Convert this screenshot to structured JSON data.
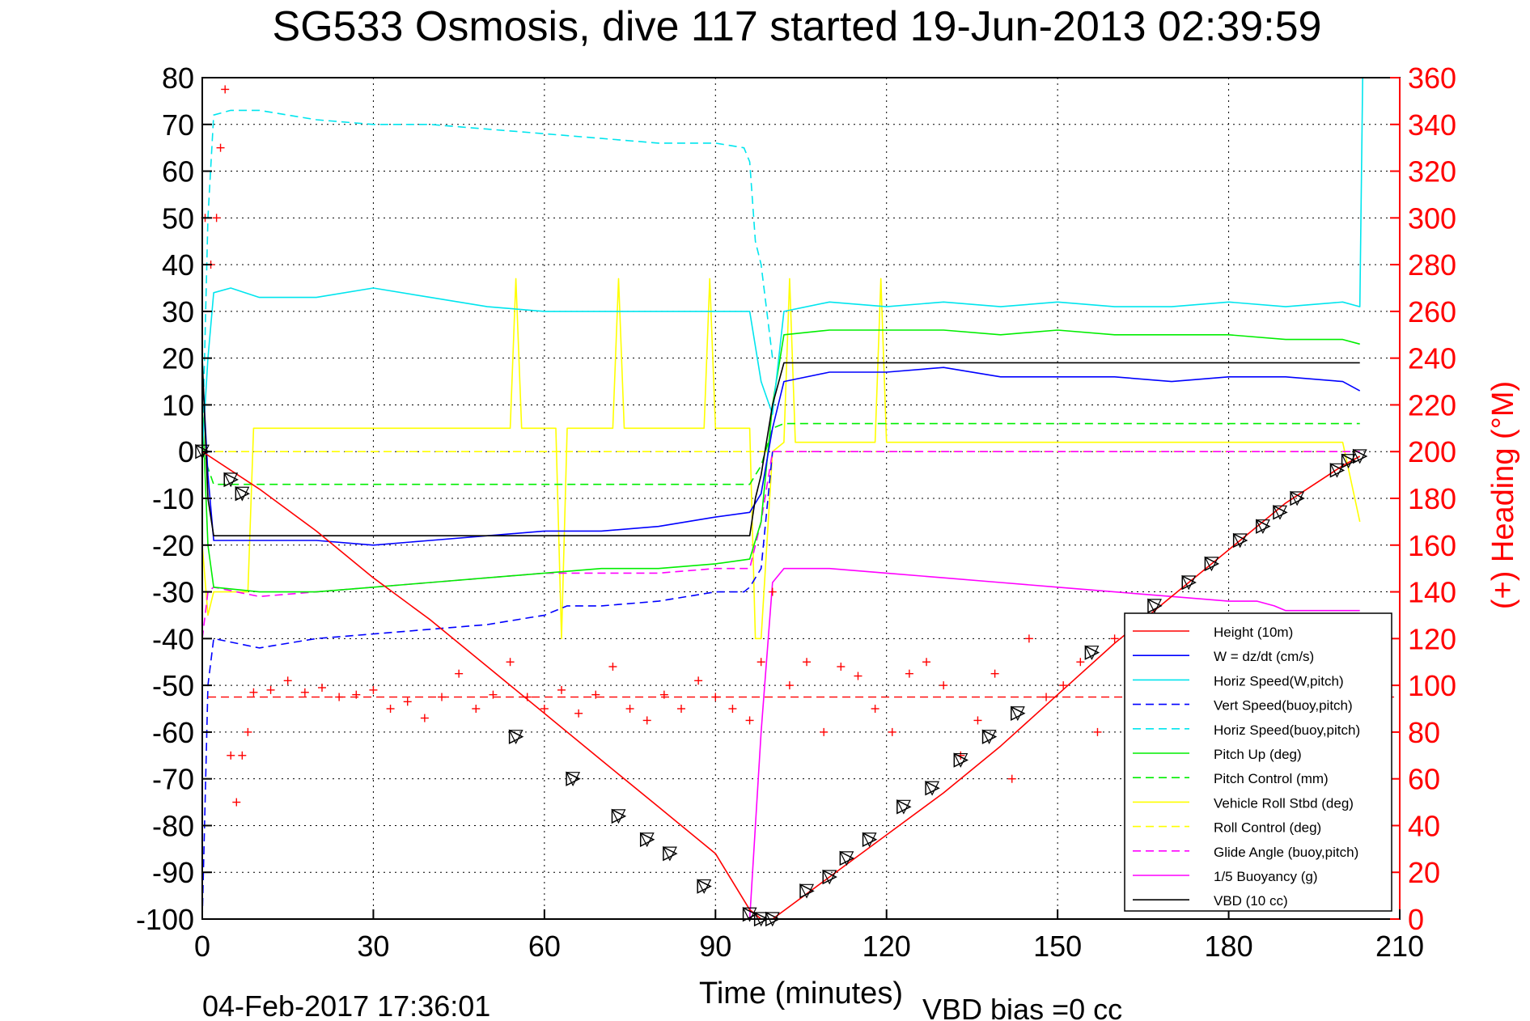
{
  "chart_data": {
    "type": "line",
    "title": "SG533 Osmosis, dive 117 started 19-Jun-2013 02:39:59",
    "xlabel": "Time (minutes)",
    "ylabel": "",
    "y2label": "(+) Heading (°M)",
    "xlim": [
      0,
      210
    ],
    "ylim": [
      -100,
      80
    ],
    "y2lim": [
      0,
      360
    ],
    "xticks": [
      "0",
      "30",
      "60",
      "90",
      "120",
      "150",
      "180",
      "210"
    ],
    "yticks": [
      "80",
      "70",
      "60",
      "50",
      "40",
      "30",
      "20",
      "10",
      "0",
      "-10",
      "-20",
      "-30",
      "-40",
      "-50",
      "-60",
      "-70",
      "-80",
      "-90",
      "-100"
    ],
    "y2ticks": [
      "360",
      "340",
      "320",
      "300",
      "280",
      "260",
      "240",
      "220",
      "200",
      "180",
      "160",
      "140",
      "120",
      "100",
      "80",
      "60",
      "40",
      "20",
      "0"
    ],
    "grid": true,
    "legend_position": "bottom-right",
    "footer_timestamp": "04-Feb-2017 17:36:01",
    "footer_note": "VBD bias =0 cc",
    "colors": {
      "axes": "#000000",
      "heading": "#ff0000",
      "grid": "#000000"
    },
    "series": [
      {
        "name": "Height (10m)",
        "color": "#ff0000",
        "dash": "solid",
        "x": [
          0,
          10,
          20,
          30,
          40,
          50,
          60,
          70,
          80,
          90,
          96,
          98,
          100,
          110,
          120,
          130,
          140,
          150,
          160,
          170,
          180,
          190,
          200,
          203
        ],
        "y": [
          0,
          -8,
          -17,
          -27,
          -36,
          -46,
          -56,
          -66,
          -76,
          -86,
          -98,
          -100,
          -100,
          -91,
          -82,
          -73,
          -63,
          -52,
          -41,
          -31,
          -21,
          -11,
          -3,
          -1
        ]
      },
      {
        "name": "W = dz/dt (cm/s)",
        "color": "#0000ff",
        "dash": "solid",
        "x": [
          0,
          1,
          2,
          10,
          20,
          30,
          40,
          50,
          60,
          70,
          80,
          90,
          96,
          98,
          100,
          102,
          110,
          120,
          130,
          140,
          150,
          160,
          170,
          180,
          190,
          200,
          203
        ],
        "y": [
          18,
          -5,
          -19,
          -19,
          -19,
          -20,
          -19,
          -18,
          -17,
          -17,
          -16,
          -14,
          -13,
          -9,
          5,
          15,
          17,
          17,
          18,
          16,
          16,
          16,
          15,
          16,
          16,
          15,
          13
        ]
      },
      {
        "name": "Horiz Speed(W,pitch)",
        "color": "#00e5ee",
        "dash": "solid",
        "x": [
          0,
          1,
          2,
          5,
          10,
          20,
          30,
          40,
          50,
          60,
          70,
          80,
          90,
          96,
          98,
          100,
          102,
          110,
          120,
          130,
          140,
          150,
          160,
          170,
          180,
          190,
          200,
          203,
          203.5
        ],
        "y": [
          0,
          20,
          34,
          35,
          33,
          33,
          35,
          33,
          31,
          30,
          30,
          30,
          30,
          30,
          15,
          8,
          30,
          32,
          31,
          32,
          31,
          32,
          31,
          31,
          32,
          31,
          32,
          31,
          80
        ]
      },
      {
        "name": "Vert Speed(buoy,pitch)",
        "color": "#0000ff",
        "dash": "dashed",
        "x": [
          0,
          0.5,
          1,
          2,
          10,
          20,
          30,
          40,
          50,
          60,
          64,
          70,
          80,
          90,
          95,
          96,
          98,
          100
        ],
        "y": [
          -100,
          -75,
          -50,
          -40,
          -42,
          -40,
          -39,
          -38,
          -37,
          -35,
          -33,
          -33,
          -32,
          -30,
          -30,
          -29,
          -25,
          0
        ]
      },
      {
        "name": "Horiz Speed(buoy,pitch)",
        "color": "#00e5ee",
        "dash": "dashed",
        "x": [
          0,
          1,
          2,
          5,
          10,
          20,
          30,
          40,
          50,
          60,
          70,
          80,
          90,
          95,
          96,
          97,
          98,
          100
        ],
        "y": [
          0,
          50,
          72,
          73,
          73,
          71,
          70,
          70,
          69,
          68,
          67,
          66,
          66,
          65,
          62,
          45,
          40,
          20
        ]
      },
      {
        "name": "Pitch Up (deg)",
        "color": "#00ee00",
        "dash": "solid",
        "x": [
          0,
          1,
          2,
          10,
          20,
          30,
          40,
          50,
          60,
          70,
          80,
          90,
          96,
          98,
          100,
          102,
          110,
          120,
          130,
          140,
          150,
          160,
          170,
          180,
          190,
          200,
          203
        ],
        "y": [
          10,
          -20,
          -29,
          -30,
          -30,
          -29,
          -28,
          -27,
          -26,
          -25,
          -25,
          -24,
          -23,
          -15,
          10,
          25,
          26,
          26,
          26,
          25,
          26,
          25,
          25,
          25,
          24,
          24,
          23
        ]
      },
      {
        "name": "Pitch Control (mm)",
        "color": "#00ee00",
        "dash": "dashed",
        "x": [
          0,
          2,
          10,
          20,
          40,
          60,
          80,
          96,
          98,
          100,
          102,
          120,
          140,
          160,
          180,
          203
        ],
        "y": [
          0,
          -7,
          -7,
          -7,
          -7,
          -7,
          -7,
          -7,
          -3,
          5,
          6,
          6,
          6,
          6,
          6,
          6
        ]
      },
      {
        "name": "Vehicle Roll Stbd (deg)",
        "color": "#ffff00",
        "dash": "solid",
        "x": [
          0,
          1,
          2,
          8,
          9,
          10,
          30,
          54,
          55,
          56,
          62,
          63,
          64,
          70,
          72,
          73,
          74,
          80,
          88,
          89,
          90,
          96,
          97,
          98,
          100,
          102,
          103,
          104,
          110,
          118,
          119,
          120,
          130,
          140,
          150,
          170,
          180,
          190,
          200,
          203
        ],
        "y": [
          -20,
          -35,
          -30,
          -30,
          5,
          5,
          5,
          5,
          37,
          5,
          5,
          -40,
          5,
          5,
          5,
          37,
          5,
          5,
          5,
          37,
          5,
          5,
          -40,
          -40,
          0,
          2,
          37,
          2,
          2,
          2,
          37,
          2,
          2,
          2,
          2,
          2,
          2,
          2,
          2,
          -15
        ]
      },
      {
        "name": "Roll Control (deg)",
        "color": "#ffff00",
        "dash": "dashed",
        "x": [
          0,
          2,
          10,
          30,
          60,
          90,
          96,
          98,
          100,
          120,
          150,
          180,
          203
        ],
        "y": [
          0,
          0,
          0,
          0,
          0,
          0,
          0,
          0,
          0,
          0,
          0,
          0,
          0
        ]
      },
      {
        "name": "Glide Angle (buoy,pitch)",
        "color": "#ff00ff",
        "dash": "dashed",
        "x": [
          0,
          1,
          2,
          10,
          20,
          30,
          40,
          50,
          60,
          70,
          80,
          90,
          96,
          98,
          100,
          203
        ],
        "y": [
          -40,
          -30,
          -29,
          -31,
          -30,
          -29,
          -28,
          -27,
          -26,
          -26,
          -26,
          -25,
          -25,
          -15,
          0,
          0
        ]
      },
      {
        "name": "1/5 Buoyancy (g)",
        "color": "#ff00ff",
        "dash": "solid",
        "x": [
          96,
          98,
          100,
          102,
          110,
          120,
          130,
          140,
          150,
          160,
          170,
          180,
          185,
          188,
          190,
          195,
          200,
          203
        ],
        "y": [
          -100,
          -60,
          -28,
          -25,
          -25,
          -26,
          -27,
          -28,
          -29,
          -30,
          -31,
          -32,
          -32,
          -33,
          -34,
          -34,
          -34,
          -34
        ]
      },
      {
        "name": "VBD (10 cc)",
        "color": "#000000",
        "dash": "solid",
        "x": [
          0,
          1,
          2,
          10,
          20,
          30,
          40,
          50,
          60,
          70,
          80,
          90,
          96,
          97,
          98,
          100,
          102,
          110,
          120,
          140,
          160,
          180,
          203
        ],
        "y": [
          20,
          -10,
          -18,
          -18,
          -18,
          -18,
          -18,
          -18,
          -18,
          -18,
          -18,
          -18,
          -18,
          -10,
          -5,
          10,
          19,
          19,
          19,
          19,
          19,
          19,
          19
        ]
      }
    ],
    "heading": {
      "name": "Heading",
      "marker": "+",
      "color": "#ff0000",
      "reference_deg": 95,
      "x": [
        0.5,
        1.5,
        2.5,
        3.2,
        4.0,
        5,
        6,
        7,
        8,
        9,
        12,
        15,
        18,
        21,
        24,
        27,
        30,
        33,
        36,
        39,
        42,
        45,
        48,
        51,
        54,
        57,
        60,
        63,
        66,
        69,
        72,
        75,
        78,
        81,
        84,
        87,
        90,
        93,
        96,
        98,
        100,
        103,
        106,
        109,
        112,
        115,
        118,
        121,
        124,
        127,
        130,
        133,
        136,
        139,
        142,
        145,
        148,
        151,
        154,
        157,
        160,
        163,
        166
      ],
      "y": [
        300,
        280,
        300,
        330,
        355,
        70,
        50,
        70,
        80,
        97,
        98,
        102,
        97,
        99,
        95,
        96,
        98,
        90,
        93,
        86,
        95,
        105,
        90,
        96,
        110,
        95,
        90,
        98,
        88,
        96,
        108,
        90,
        85,
        96,
        90,
        102,
        95,
        90,
        85,
        110,
        140,
        100,
        110,
        80,
        108,
        104,
        90,
        80,
        105,
        110,
        100,
        70,
        85,
        105,
        60,
        120,
        95,
        100,
        110,
        80,
        120,
        125,
        130
      ]
    },
    "height_markers": {
      "x": [
        0,
        5,
        7,
        55,
        65,
        73,
        78,
        82,
        88,
        96,
        98,
        100,
        106,
        110,
        113,
        117,
        123,
        128,
        133,
        138,
        143,
        156,
        167,
        173,
        177,
        182,
        186,
        189,
        192,
        199,
        201,
        203
      ],
      "y": [
        0,
        -6,
        -9,
        -61,
        -70,
        -78,
        -83,
        -86,
        -93,
        -99,
        -100,
        -100,
        -94,
        -91,
        -87,
        -83,
        -76,
        -72,
        -66,
        -61,
        -56,
        -43,
        -33,
        -28,
        -24,
        -19,
        -16,
        -13,
        -10,
        -4,
        -2,
        -1
      ]
    }
  }
}
